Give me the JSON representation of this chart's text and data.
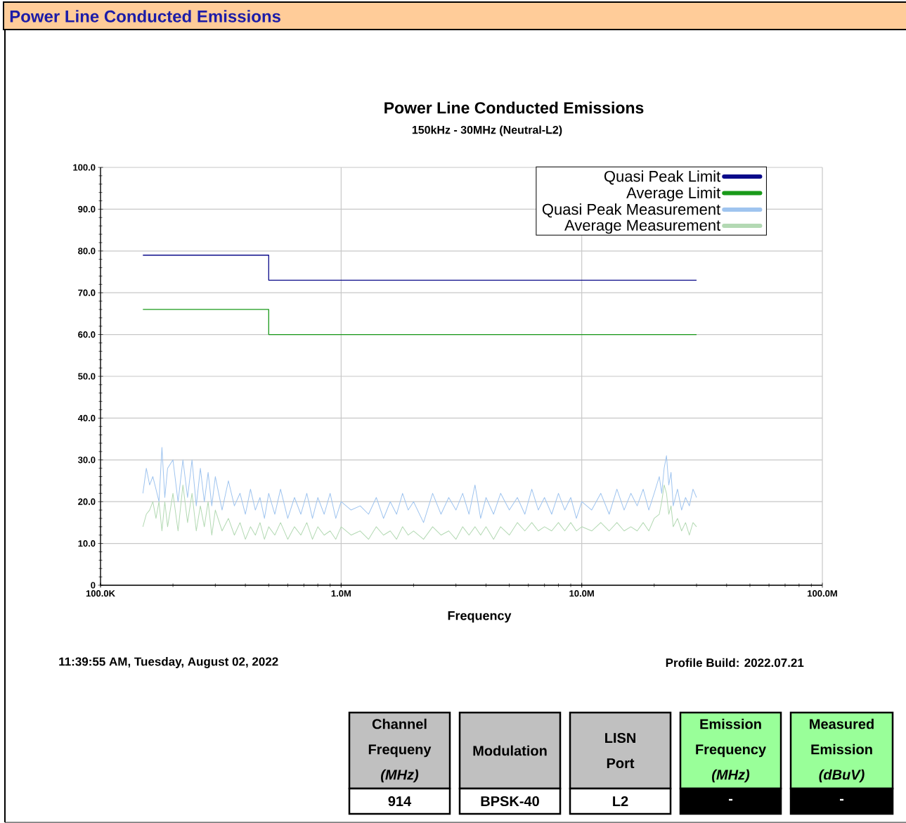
{
  "chart_data": {
    "type": "line",
    "title": "Power Line Conducted Emissions",
    "subtitle": "150kHz - 30MHz (Neutral-L2)",
    "xlabel": "Frequency",
    "log": "x",
    "xlim": [
      100000,
      100000000
    ],
    "xticks": [
      {
        "value": 100000,
        "label": "100.0K"
      },
      {
        "value": 1000000,
        "label": "1.0M"
      },
      {
        "value": 10000000,
        "label": "10.0M"
      },
      {
        "value": 100000000,
        "label": "100.0M"
      }
    ],
    "ylim": [
      0,
      100
    ],
    "yticks": [
      0,
      {
        "value": 10,
        "label": "10.0"
      },
      {
        "value": 20,
        "label": "20.0"
      },
      {
        "value": 30,
        "label": "30.0"
      },
      {
        "value": 40,
        "label": "40.0"
      },
      {
        "value": 50,
        "label": "50.0"
      },
      {
        "value": 60,
        "label": "60.0"
      },
      {
        "value": 70,
        "label": "70.0"
      },
      {
        "value": 80,
        "label": "80.0"
      },
      {
        "value": 90,
        "label": "90.0"
      },
      {
        "value": 100,
        "label": "100.0"
      }
    ],
    "grid": true,
    "legend": "top right",
    "x": [
      150000,
      155000,
      160000,
      165000,
      170000,
      175000,
      180000,
      185000,
      190000,
      200000,
      210000,
      220000,
      230000,
      240000,
      250000,
      260000,
      270000,
      280000,
      290000,
      300000,
      320000,
      340000,
      360000,
      380000,
      400000,
      420000,
      440000,
      460000,
      480000,
      500000,
      530000,
      560000,
      600000,
      640000,
      680000,
      720000,
      760000,
      800000,
      850000,
      900000,
      950000,
      1000000,
      1100000,
      1200000,
      1300000,
      1400000,
      1500000,
      1600000,
      1700000,
      1800000,
      1900000,
      2000000,
      2200000,
      2400000,
      2600000,
      2800000,
      3000000,
      3200000,
      3400000,
      3600000,
      3800000,
      4000000,
      4300000,
      4600000,
      5000000,
      5400000,
      5800000,
      6200000,
      6600000,
      7000000,
      7500000,
      8000000,
      8500000,
      9000000,
      9500000,
      10000000,
      11000000,
      12000000,
      13000000,
      14000000,
      15000000,
      16000000,
      17000000,
      18000000,
      19000000,
      20000000,
      21000000,
      21500000,
      22000000,
      22500000,
      23000000,
      23500000,
      24000000,
      25000000,
      26000000,
      27000000,
      28000000,
      29000000,
      30000000
    ],
    "series": [
      {
        "name": "Quasi Peak Limit",
        "color": "#0a0a8a",
        "x": [
          150000,
          500000,
          500000,
          30000000
        ],
        "values": [
          79,
          79,
          73,
          73
        ]
      },
      {
        "name": "Average Limit",
        "color": "#1a9a1a",
        "x": [
          150000,
          500000,
          500000,
          30000000
        ],
        "values": [
          66,
          66,
          60,
          60
        ]
      },
      {
        "name": "Quasi Peak Measurement",
        "color": "#9fc4ef",
        "values": [
          22,
          28,
          24,
          26,
          23,
          20,
          33,
          21,
          28,
          30,
          20,
          30,
          21,
          30,
          19,
          28,
          20,
          27,
          19,
          26,
          18,
          25,
          19,
          22,
          17,
          23,
          18,
          21,
          16,
          22,
          17,
          23,
          16,
          21,
          17,
          22,
          16,
          21,
          17,
          22,
          16,
          20,
          18,
          19,
          17,
          21,
          16,
          20,
          17,
          22,
          18,
          20,
          15,
          22,
          17,
          21,
          18,
          22,
          17,
          24,
          16,
          21,
          17,
          22,
          18,
          21,
          17,
          23,
          18,
          21,
          17,
          22,
          18,
          21,
          16,
          20,
          18,
          22,
          17,
          23,
          18,
          22,
          19,
          23,
          18,
          22,
          26,
          22,
          28,
          31,
          24,
          27,
          19,
          23,
          18,
          21,
          19,
          23,
          21
        ]
      },
      {
        "name": "Average Measurement",
        "color": "#b3d9b3",
        "values": [
          14,
          17,
          18,
          20,
          16,
          20,
          13,
          20,
          14,
          22,
          13,
          24,
          15,
          22,
          13,
          19,
          14,
          20,
          12,
          18,
          13,
          16,
          12,
          15,
          11,
          14,
          12,
          15,
          11,
          14,
          12,
          15,
          11,
          14,
          12,
          15,
          11,
          14,
          12,
          13,
          11,
          14,
          12,
          13,
          11,
          14,
          12,
          13,
          11,
          14,
          12,
          13,
          11,
          14,
          12,
          13,
          11,
          14,
          12,
          14,
          12,
          14,
          11,
          14,
          12,
          15,
          13,
          15,
          13,
          14,
          13,
          15,
          13,
          15,
          13,
          14,
          13,
          15,
          13,
          15,
          13,
          14,
          13,
          15,
          13,
          16,
          17,
          20,
          24,
          22,
          17,
          19,
          14,
          16,
          13,
          15,
          12,
          15,
          14
        ]
      }
    ],
    "annotations": [
      "Power Line Conducted Emissions",
      "11:39:55 AM, Tuesday, August 02, 2022",
      "Profile Build: 2022.07.21",
      "Channel Frequeny *(MHz)*",
      "Modulation",
      "LISN Port",
      "Emission Frequency *(MHz)*",
      "Measured Emission *(dBuV)*",
      "914",
      "BPSK-40",
      "L2",
      "-",
      "-"
    ]
  }
}
